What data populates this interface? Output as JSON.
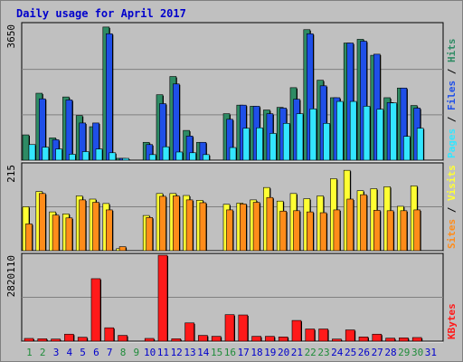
{
  "title": "Daily usage for April 2017",
  "colors": {
    "background": "#c0c0c0",
    "pages": "#2e8b64",
    "files": "#1f4fe8",
    "hits": "#33e6ff",
    "visits": "#ffff33",
    "sites": "#ff8c1a",
    "kbytes": "#ff1a1a",
    "weekend_day_label": "#1f8c3a",
    "weekday_label": "#0000cc",
    "title": "#0000cc"
  },
  "axis_labels": {
    "top_max": "3650",
    "mid_max": "215",
    "bottom_max": "2820110"
  },
  "right_labels": {
    "top": [
      {
        "text": "Pages",
        "color": "#33e6ff"
      },
      {
        "text": " / ",
        "color": "#000000"
      },
      {
        "text": "Files",
        "color": "#1f4fe8"
      },
      {
        "text": " / ",
        "color": "#000000"
      },
      {
        "text": "Hits",
        "color": "#2e8b64"
      }
    ],
    "mid": [
      {
        "text": "Sites",
        "color": "#ff8c1a"
      },
      {
        "text": " / ",
        "color": "#000000"
      },
      {
        "text": "Visits",
        "color": "#ffff33"
      }
    ],
    "bottom": [
      {
        "text": "KBytes",
        "color": "#ff1a1a"
      }
    ]
  },
  "chart_data": {
    "type": "bar",
    "title": "Daily usage for April 2017",
    "categories": [
      "1",
      "2",
      "3",
      "4",
      "5",
      "6",
      "7",
      "8",
      "9",
      "10",
      "11",
      "12",
      "13",
      "14",
      "15",
      "16",
      "17",
      "18",
      "19",
      "20",
      "21",
      "22",
      "23",
      "24",
      "25",
      "26",
      "27",
      "28",
      "29",
      "30",
      "31"
    ],
    "weekend_days": [
      "1",
      "2",
      "8",
      "9",
      "15",
      "16",
      "22",
      "23",
      "29",
      "30"
    ],
    "panels": [
      {
        "name": "hits-files-pages",
        "ylim": [
          0,
          3650
        ],
        "series": [
          {
            "name": "Hits",
            "values": [
              680,
              1800,
              600,
              1700,
              1200,
              900,
              3580,
              50,
              0,
              480,
              1760,
              2250,
              800,
              480,
              0,
              1250,
              1480,
              1450,
              1350,
              1420,
              1950,
              3510,
              2150,
              1680,
              3150,
              3250,
              2820,
              1680,
              1940,
              1470,
              0
            ]
          },
          {
            "name": "Files",
            "values": [
              0,
              1650,
              550,
              1620,
              1000,
              1000,
              3400,
              40,
              0,
              420,
              1520,
              2050,
              650,
              480,
              0,
              1100,
              1480,
              1450,
              1250,
              1400,
              1640,
              3400,
              2000,
              1680,
              3150,
              3200,
              2850,
              1550,
              1940,
              1400,
              0
            ]
          },
          {
            "name": "Pages",
            "values": [
              420,
              350,
              300,
              160,
              230,
              300,
              200,
              20,
              0,
              150,
              360,
              220,
              200,
              150,
              0,
              340,
              860,
              870,
              720,
              990,
              1250,
              1380,
              990,
              1580,
              1580,
              1450,
              1370,
              1540,
              640,
              860,
              0
            ]
          }
        ]
      },
      {
        "name": "visits-sites",
        "ylim": [
          0,
          215
        ],
        "series": [
          {
            "name": "Visits",
            "values": [
              110,
              148,
              97,
              92,
              137,
              129,
              118,
              5,
              0,
              88,
              143,
              143,
              138,
              126,
              0,
              116,
              119,
              127,
              158,
              124,
              143,
              130,
              137,
              180,
              201,
              150,
              155,
              160,
              111,
              162,
              0
            ]
          },
          {
            "name": "Sites",
            "values": [
              67,
              143,
              89,
              82,
              127,
              121,
              102,
              10,
              0,
              83,
              136,
              137,
              127,
              120,
              0,
              102,
              117,
              121,
              133,
              99,
              100,
              97,
              95,
              102,
              129,
              140,
              101,
              100,
              100,
              102,
              0
            ]
          }
        ]
      },
      {
        "name": "kbytes",
        "ylim": [
          0,
          2820110
        ],
        "series": [
          {
            "name": "KBytes",
            "values": [
              90000,
              80000,
              70000,
              230000,
              130000,
              2050000,
              440000,
              190000,
              0,
              90000,
              2820110,
              80000,
              600000,
              190000,
              160000,
              870000,
              860000,
              160000,
              160000,
              140000,
              680000,
              400000,
              400000,
              70000,
              370000,
              140000,
              230000,
              100000,
              110000,
              120000,
              0
            ]
          }
        ]
      }
    ]
  }
}
